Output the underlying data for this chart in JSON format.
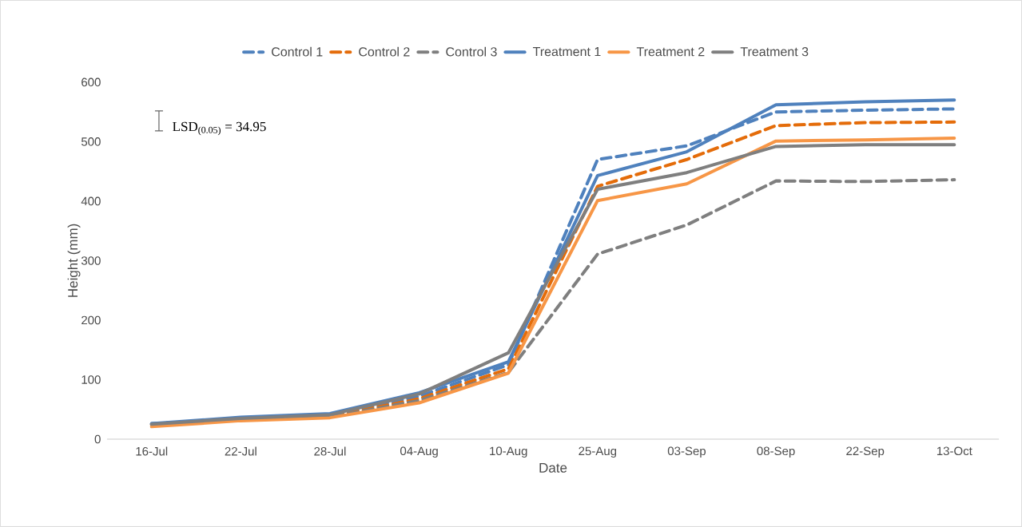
{
  "chart_data": {
    "type": "line",
    "xlabel": "Date",
    "ylabel": "Height (mm)",
    "categories": [
      "16-Jul",
      "22-Jul",
      "28-Jul",
      "04-Aug",
      "10-Aug",
      "25-Aug",
      "03-Sep",
      "08-Sep",
      "22-Sep",
      "13-Oct"
    ],
    "series": [
      {
        "name": "Control 1",
        "color": "#4f81bd",
        "line_style": "dashed",
        "values": [
          26,
          34,
          40,
          72,
          125,
          470,
          493,
          550,
          553,
          555
        ]
      },
      {
        "name": "Control 2",
        "color": "#e46c0a",
        "line_style": "dashed",
        "values": [
          24,
          32,
          38,
          68,
          118,
          425,
          470,
          527,
          532,
          533
        ]
      },
      {
        "name": "Control 3",
        "color": "#7f7f7f",
        "line_style": "dashed",
        "values": [
          25,
          32,
          37,
          65,
          112,
          311,
          360,
          434,
          433,
          436
        ]
      },
      {
        "name": "Treatment 1",
        "color": "#4f81bd",
        "line_style": "solid",
        "values": [
          26,
          37,
          43,
          78,
          130,
          443,
          483,
          562,
          567,
          570
        ]
      },
      {
        "name": "Treatment 2",
        "color": "#f79646",
        "line_style": "solid",
        "values": [
          21,
          31,
          36,
          61,
          111,
          401,
          429,
          501,
          503,
          506
        ]
      },
      {
        "name": "Treatment 3",
        "color": "#7f7f7f",
        "line_style": "solid",
        "values": [
          25,
          35,
          41,
          76,
          145,
          420,
          448,
          492,
          495,
          495
        ]
      }
    ],
    "ylim": [
      0,
      600
    ],
    "yticks": [
      0,
      100,
      200,
      300,
      400,
      500,
      600
    ],
    "grid": false,
    "legend": "top",
    "marker": "none",
    "annotations": [
      "LSD$_{(0.05)}$ = 34.95"
    ]
  }
}
